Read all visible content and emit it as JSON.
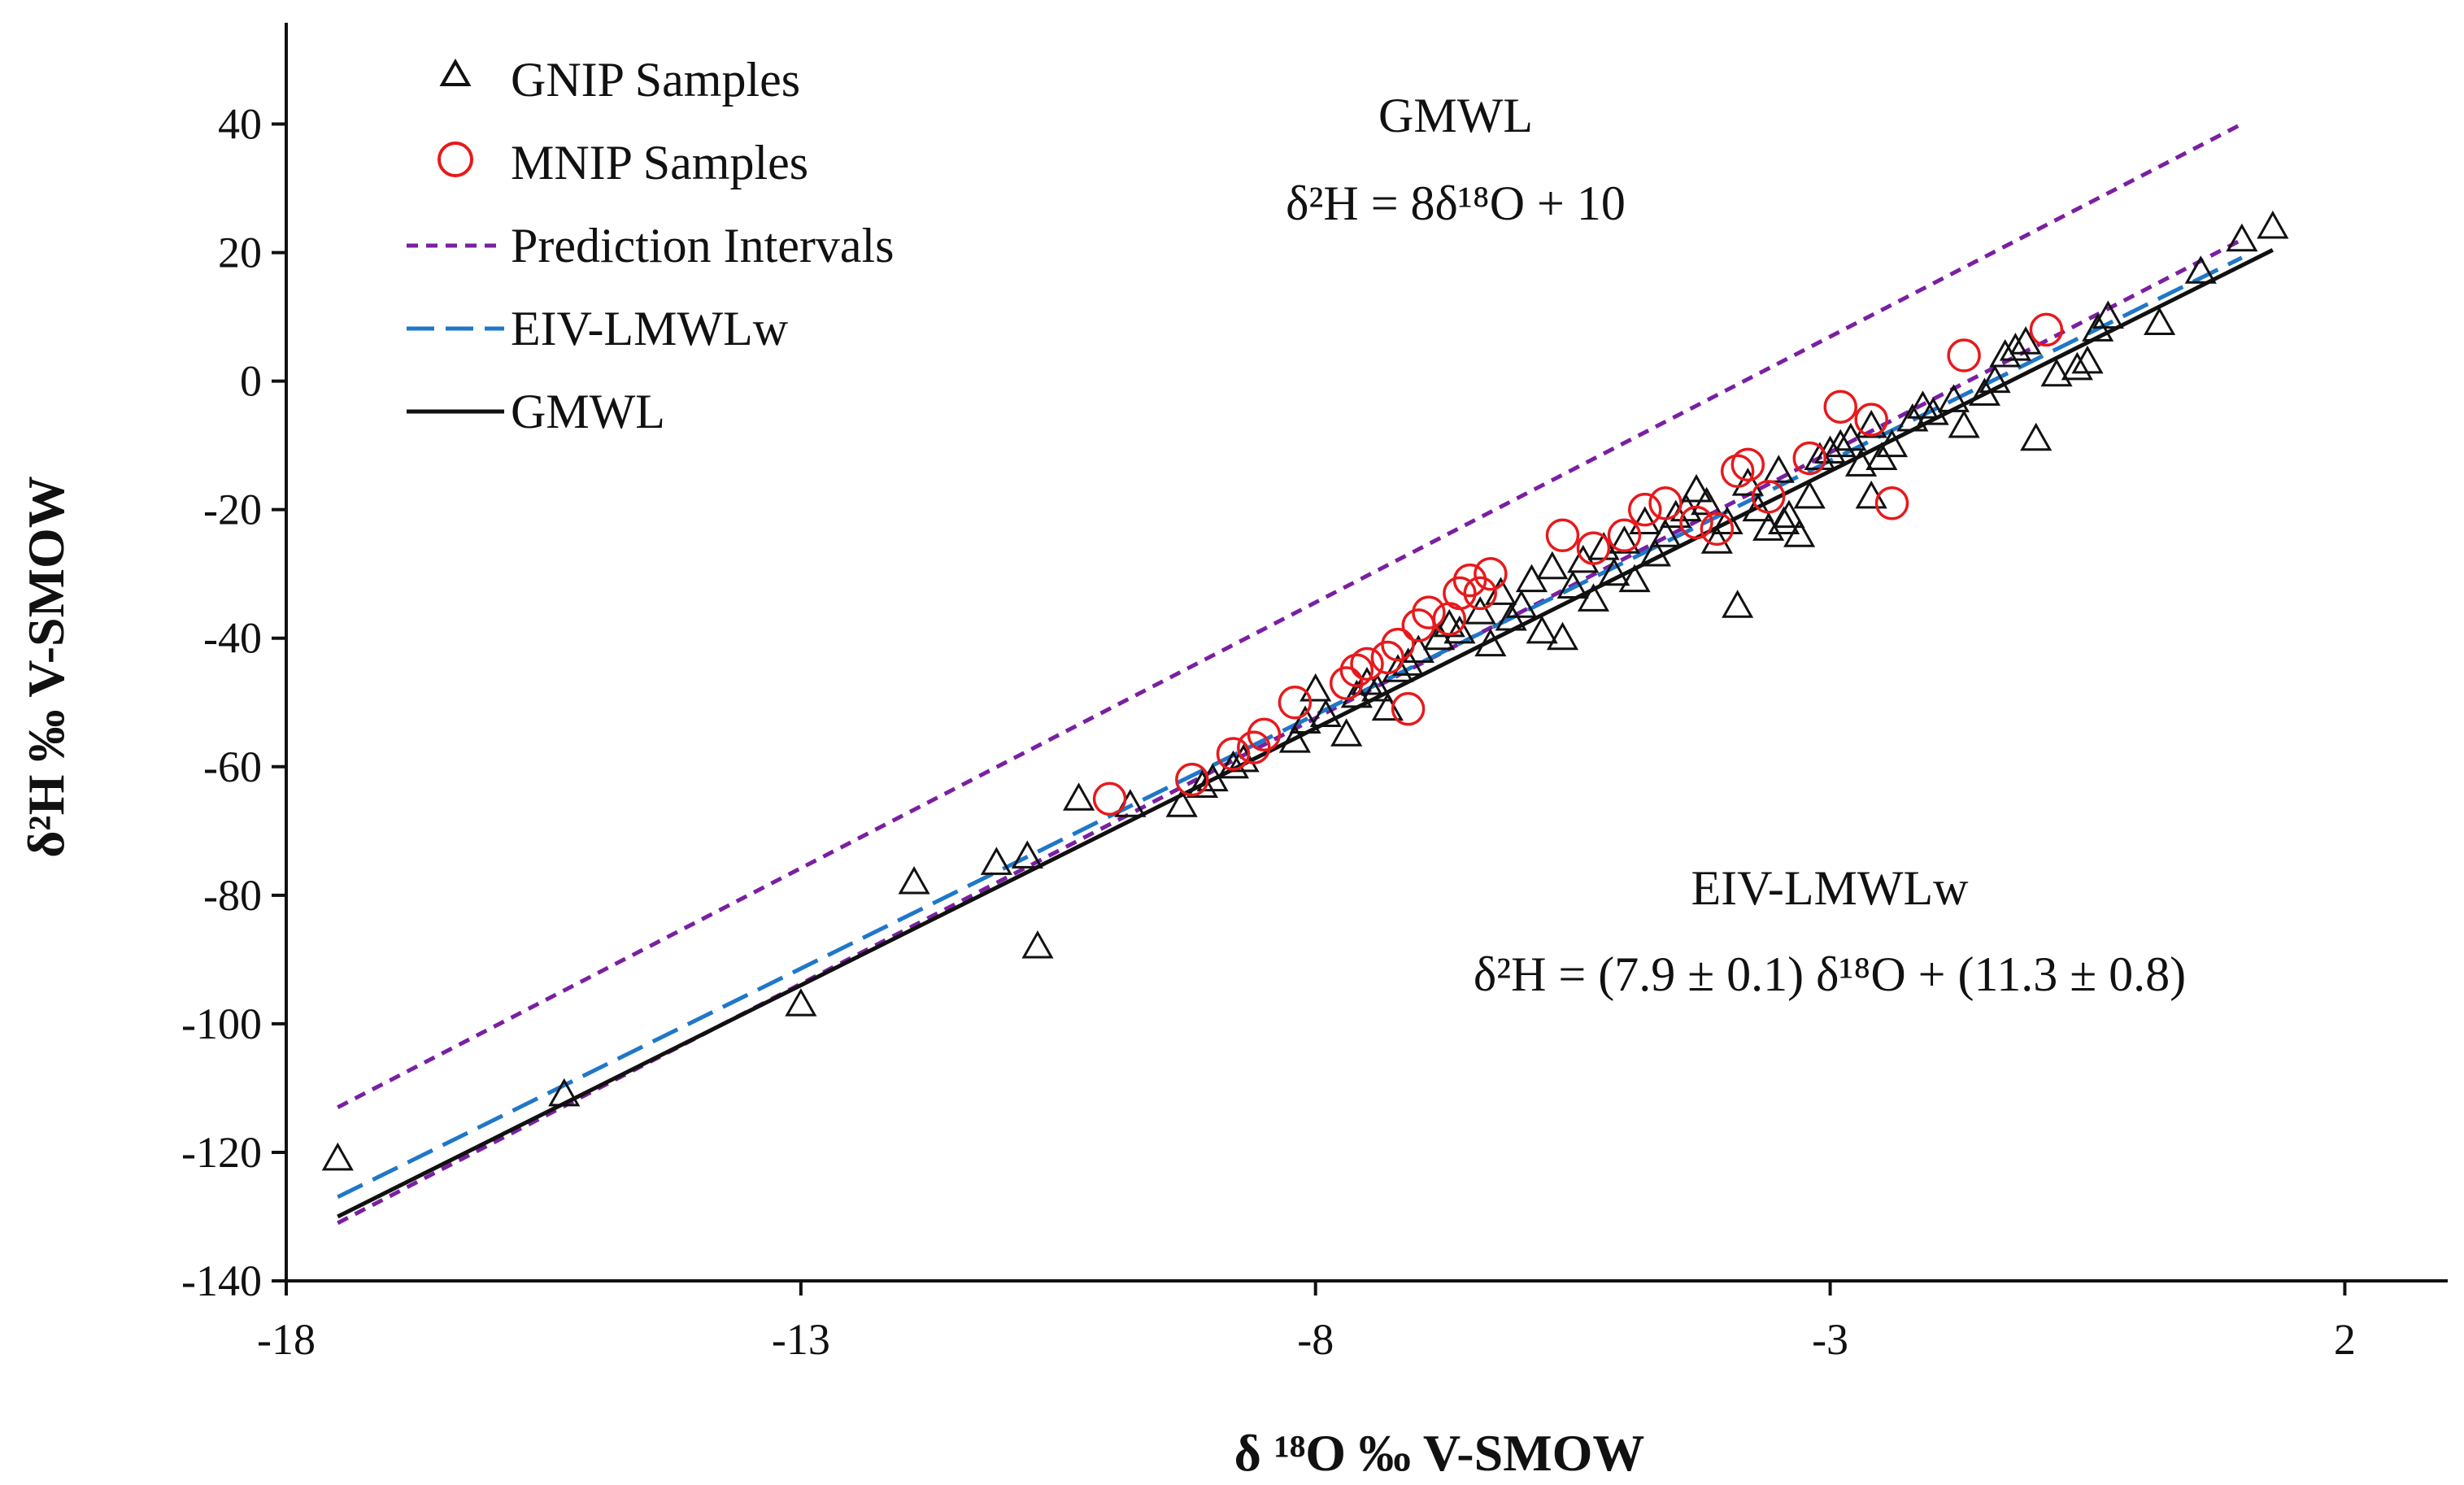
{
  "chart_data": {
    "type": "scatter",
    "xlabel": "δ ¹⁸O ‰ V-SMOW",
    "ylabel": "δ²H ‰ V-SMOW",
    "xlim": [
      -18,
      3
    ],
    "ylim": [
      -140,
      45
    ],
    "x_ticks": [
      -18,
      -13,
      -8,
      -3,
      2
    ],
    "y_ticks": [
      40,
      20,
      0,
      -20,
      -40,
      -60,
      -80,
      -100,
      -120,
      -140
    ],
    "x_tick_labels": [
      "-18",
      "-13",
      "-8",
      "-3",
      "2"
    ],
    "y_tick_labels": [
      "40",
      "20",
      "0",
      "-20",
      "-40",
      "-60",
      "-80",
      "-100",
      "-120",
      "-140"
    ],
    "grid": false,
    "legend_position": "top-left",
    "legend": [
      {
        "label": "GNIP Samples",
        "marker": "triangle",
        "color": "#111111"
      },
      {
        "label": "MNIP Samples",
        "marker": "circle",
        "color": "#e8191c"
      },
      {
        "label": "Prediction Intervals",
        "line": "short-dash",
        "color": "#7b1fa2"
      },
      {
        "label": "EIV-LMWLw",
        "line": "long-dash",
        "color": "#1f77c8"
      },
      {
        "label": "GMWL",
        "line": "solid",
        "color": "#111111"
      }
    ],
    "annotations": {
      "gmwl_title": "GMWL",
      "gmwl_equation": "δ²H = 8δ¹⁸O + 10",
      "eiv_title": "EIV-LMWLw",
      "eiv_equation": "δ²H = (7.9 ± 0.1) δ¹⁸O + (11.3 ± 0.8)"
    },
    "lines": {
      "gmwl": {
        "slope": 8,
        "intercept": 10,
        "x_range": [
          -17.5,
          1.3
        ],
        "color": "#111111"
      },
      "eiv_lmwlw": {
        "slope": 7.9,
        "intercept": 11.3,
        "x_range": [
          -17.5,
          1.0
        ],
        "color": "#1f77c8"
      },
      "prediction_upper": {
        "points": [
          [
            -17.5,
            -113
          ],
          [
            1.0,
            40
          ]
        ],
        "color": "#7b1fa2"
      },
      "prediction_lower": {
        "points": [
          [
            -17.5,
            -131
          ],
          [
            1.0,
            22
          ]
        ],
        "color": "#7b1fa2"
      }
    },
    "series": [
      {
        "name": "GNIP Samples",
        "marker": "triangle",
        "color": "#111111",
        "points": [
          [
            -17.5,
            -121
          ],
          [
            -15.3,
            -111
          ],
          [
            -13,
            -97
          ],
          [
            -11.9,
            -78
          ],
          [
            -11.1,
            -75
          ],
          [
            -10.8,
            -74
          ],
          [
            -10.7,
            -88
          ],
          [
            -10.3,
            -65
          ],
          [
            -9.8,
            -66
          ],
          [
            -9.3,
            -66
          ],
          [
            -9.1,
            -63
          ],
          [
            -9.0,
            -62
          ],
          [
            -8.8,
            -60
          ],
          [
            -8.7,
            -59
          ],
          [
            -8.2,
            -56
          ],
          [
            -8.1,
            -53
          ],
          [
            -8.0,
            -48
          ],
          [
            -7.9,
            -52
          ],
          [
            -7.7,
            -55
          ],
          [
            -7.6,
            -49
          ],
          [
            -7.5,
            -47
          ],
          [
            -7.4,
            -48
          ],
          [
            -7.3,
            -51
          ],
          [
            -7.2,
            -45
          ],
          [
            -7.1,
            -44
          ],
          [
            -7.0,
            -42
          ],
          [
            -6.8,
            -40
          ],
          [
            -6.7,
            -38
          ],
          [
            -6.6,
            -39
          ],
          [
            -6.4,
            -36
          ],
          [
            -6.3,
            -41
          ],
          [
            -6.2,
            -33
          ],
          [
            -6.1,
            -37
          ],
          [
            -6.0,
            -35
          ],
          [
            -5.9,
            -31
          ],
          [
            -5.8,
            -39
          ],
          [
            -5.7,
            -29
          ],
          [
            -5.6,
            -40
          ],
          [
            -5.5,
            -32
          ],
          [
            -5.4,
            -28
          ],
          [
            -5.3,
            -34
          ],
          [
            -5.2,
            -26
          ],
          [
            -5.1,
            -30
          ],
          [
            -5.0,
            -25
          ],
          [
            -4.9,
            -31
          ],
          [
            -4.8,
            -22
          ],
          [
            -4.7,
            -27
          ],
          [
            -4.6,
            -24
          ],
          [
            -4.5,
            -21
          ],
          [
            -4.4,
            -20
          ],
          [
            -4.3,
            -17
          ],
          [
            -4.2,
            -19
          ],
          [
            -4.0,
            -22
          ],
          [
            -3.9,
            -35
          ],
          [
            -3.8,
            -16
          ],
          [
            -3.7,
            -20
          ],
          [
            -3.6,
            -23
          ],
          [
            -3.5,
            -14
          ],
          [
            -3.4,
            -21
          ],
          [
            -3.3,
            -24
          ],
          [
            -3.2,
            -18
          ],
          [
            -3.1,
            -12
          ],
          [
            -3.0,
            -11
          ],
          [
            -2.9,
            -10
          ],
          [
            -2.8,
            -9
          ],
          [
            -2.7,
            -13
          ],
          [
            -2.6,
            -7
          ],
          [
            -2.5,
            -12
          ],
          [
            -2.4,
            -10
          ],
          [
            -2.2,
            -6
          ],
          [
            -2.1,
            -4
          ],
          [
            -2.0,
            -5
          ],
          [
            -1.8,
            -3
          ],
          [
            -1.7,
            -7
          ],
          [
            -1.5,
            -2
          ],
          [
            -1.4,
            0
          ],
          [
            -1.3,
            4
          ],
          [
            -1.2,
            5
          ],
          [
            -1.1,
            6
          ],
          [
            -1.0,
            -9
          ],
          [
            -0.8,
            1
          ],
          [
            -0.6,
            2
          ],
          [
            -0.5,
            3
          ],
          [
            -0.4,
            8
          ],
          [
            -0.3,
            10
          ],
          [
            0.2,
            9
          ],
          [
            0.6,
            17
          ],
          [
            1.0,
            22
          ],
          [
            1.3,
            24
          ],
          [
            -2.6,
            -18
          ],
          [
            -4.1,
            -25
          ],
          [
            -3.45,
            -22
          ]
        ]
      },
      {
        "name": "MNIP Samples",
        "marker": "circle",
        "color": "#e8191c",
        "points": [
          [
            -10.0,
            -65
          ],
          [
            -9.2,
            -62
          ],
          [
            -8.8,
            -58
          ],
          [
            -8.6,
            -57
          ],
          [
            -8.5,
            -55
          ],
          [
            -8.2,
            -50
          ],
          [
            -7.7,
            -47
          ],
          [
            -7.6,
            -45
          ],
          [
            -7.5,
            -44
          ],
          [
            -7.3,
            -43
          ],
          [
            -7.2,
            -41
          ],
          [
            -7.1,
            -51
          ],
          [
            -7.0,
            -38
          ],
          [
            -6.9,
            -36
          ],
          [
            -6.7,
            -37
          ],
          [
            -6.6,
            -33
          ],
          [
            -6.5,
            -31
          ],
          [
            -6.4,
            -33
          ],
          [
            -6.3,
            -30
          ],
          [
            -5.6,
            -24
          ],
          [
            -5.3,
            -26
          ],
          [
            -5.0,
            -24
          ],
          [
            -4.8,
            -20
          ],
          [
            -4.3,
            -22
          ],
          [
            -4.1,
            -23
          ],
          [
            -3.9,
            -14
          ],
          [
            -3.8,
            -13
          ],
          [
            -3.6,
            -18
          ],
          [
            -2.9,
            -4
          ],
          [
            -2.6,
            -6
          ],
          [
            -2.4,
            -19
          ],
          [
            -1.7,
            4
          ],
          [
            -0.9,
            8
          ],
          [
            -3.2,
            -12
          ],
          [
            -4.6,
            -19
          ]
        ]
      }
    ]
  }
}
